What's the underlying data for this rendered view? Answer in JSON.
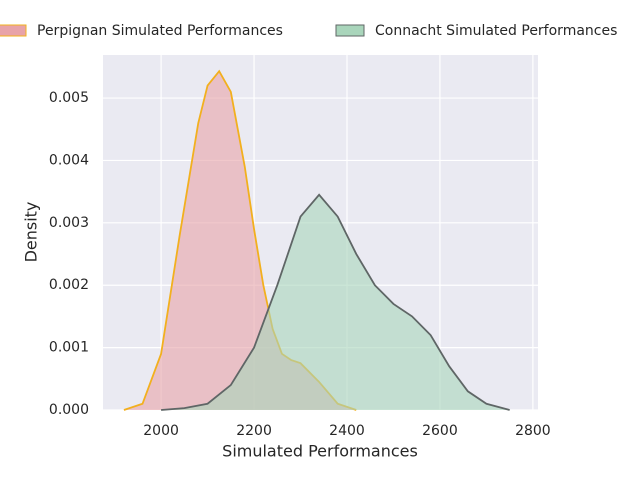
{
  "chart_data": {
    "type": "area",
    "xlabel": "Simulated Performances",
    "ylabel": "Density",
    "xlim": [
      1875,
      2811
    ],
    "ylim": [
      0,
      0.00569
    ],
    "xticks": [
      2000,
      2200,
      2400,
      2600,
      2800
    ],
    "yticks": [
      {
        "value": 0,
        "label": "0.000"
      },
      0.001,
      0.002,
      0.003,
      0.004,
      0.005
    ],
    "grid": true,
    "legend": "top",
    "series": [
      {
        "name": "Perpignan Simulated Performances",
        "color": "#e8a3a9",
        "edgecolor": "#f2b01e",
        "x": [
          1920,
          1960,
          2000,
          2040,
          2080,
          2100,
          2125,
          2150,
          2180,
          2200,
          2220,
          2240,
          2260,
          2280,
          2300,
          2340,
          2380,
          2420
        ],
        "values": [
          0,
          0.0001,
          0.0009,
          0.0028,
          0.0046,
          0.0052,
          0.00543,
          0.0051,
          0.0039,
          0.0029,
          0.002,
          0.0013,
          0.0009,
          0.0008,
          0.00075,
          0.00045,
          0.0001,
          0
        ]
      },
      {
        "name": "Connacht Simulated Performances",
        "color": "#a9d5bb",
        "edgecolor": "#5f6666",
        "x": [
          2000,
          2050,
          2100,
          2150,
          2200,
          2250,
          2300,
          2340,
          2380,
          2420,
          2460,
          2500,
          2540,
          2580,
          2620,
          2660,
          2700,
          2750
        ],
        "values": [
          0,
          3e-05,
          0.0001,
          0.0004,
          0.001,
          0.002,
          0.0031,
          0.00345,
          0.0031,
          0.0025,
          0.002,
          0.0017,
          0.0015,
          0.0012,
          0.0007,
          0.0003,
          0.0001,
          0
        ]
      }
    ]
  }
}
